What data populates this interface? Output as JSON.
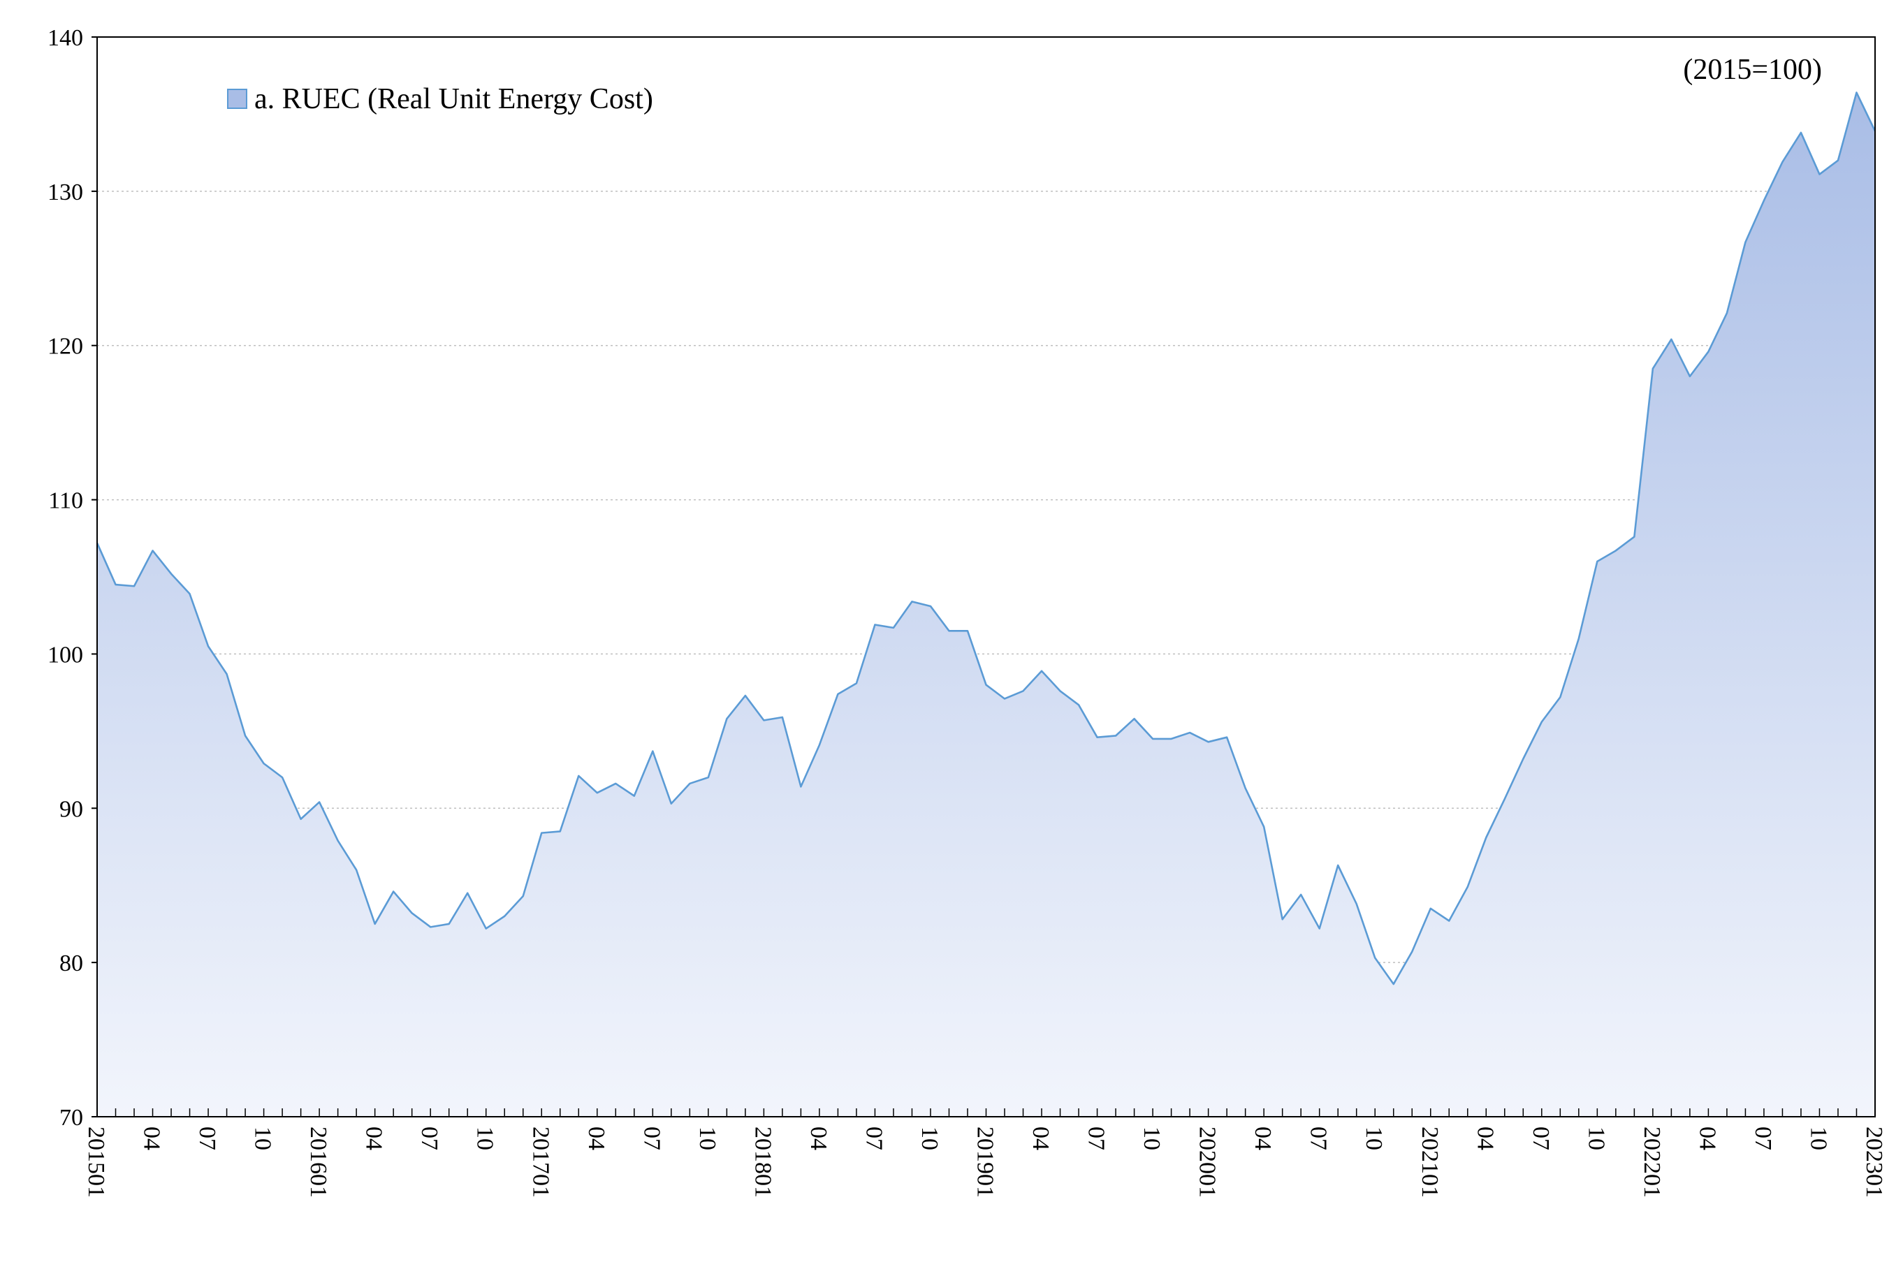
{
  "chart_data": {
    "type": "area",
    "note": "(2015=100)",
    "legend": {
      "entries": [
        "a. RUEC (Real Unit Energy Cost)"
      ],
      "placement": "top-left"
    },
    "colors": {
      "line": "#5b9bd5",
      "fill_top": "#a9bde6",
      "fill_bottom": "#f2f5fc",
      "grid": "#bfbfbf",
      "axis": "#000000"
    },
    "ylim": [
      70,
      140
    ],
    "yticks": [
      70,
      80,
      90,
      100,
      110,
      120,
      130,
      140
    ],
    "grid": true,
    "x_tick_labels": [
      {
        "index": 0,
        "label": "201501"
      },
      {
        "index": 3,
        "label": "04"
      },
      {
        "index": 6,
        "label": "07"
      },
      {
        "index": 9,
        "label": "10"
      },
      {
        "index": 12,
        "label": "201601"
      },
      {
        "index": 15,
        "label": "04"
      },
      {
        "index": 18,
        "label": "07"
      },
      {
        "index": 21,
        "label": "10"
      },
      {
        "index": 24,
        "label": "201701"
      },
      {
        "index": 27,
        "label": "04"
      },
      {
        "index": 30,
        "label": "07"
      },
      {
        "index": 33,
        "label": "10"
      },
      {
        "index": 36,
        "label": "201801"
      },
      {
        "index": 39,
        "label": "04"
      },
      {
        "index": 42,
        "label": "07"
      },
      {
        "index": 45,
        "label": "10"
      },
      {
        "index": 48,
        "label": "201901"
      },
      {
        "index": 51,
        "label": "04"
      },
      {
        "index": 54,
        "label": "07"
      },
      {
        "index": 57,
        "label": "10"
      },
      {
        "index": 60,
        "label": "202001"
      },
      {
        "index": 63,
        "label": "04"
      },
      {
        "index": 66,
        "label": "07"
      },
      {
        "index": 69,
        "label": "10"
      },
      {
        "index": 72,
        "label": "202101"
      },
      {
        "index": 75,
        "label": "04"
      },
      {
        "index": 78,
        "label": "07"
      },
      {
        "index": 81,
        "label": "10"
      },
      {
        "index": 84,
        "label": "202201"
      },
      {
        "index": 87,
        "label": "04"
      },
      {
        "index": 90,
        "label": "07"
      },
      {
        "index": 93,
        "label": "10"
      },
      {
        "index": 96,
        "label": "202301"
      }
    ],
    "series": [
      {
        "name": "a. RUEC (Real Unit Energy Cost)",
        "x": [
          "201501",
          "201502",
          "201503",
          "201504",
          "201505",
          "201506",
          "201507",
          "201508",
          "201509",
          "201510",
          "201511",
          "201512",
          "201601",
          "201602",
          "201603",
          "201604",
          "201605",
          "201606",
          "201607",
          "201608",
          "201609",
          "201610",
          "201611",
          "201612",
          "201701",
          "201702",
          "201703",
          "201704",
          "201705",
          "201706",
          "201707",
          "201708",
          "201709",
          "201710",
          "201711",
          "201712",
          "201801",
          "201802",
          "201803",
          "201804",
          "201805",
          "201806",
          "201807",
          "201808",
          "201809",
          "201810",
          "201811",
          "201812",
          "201901",
          "201902",
          "201903",
          "201904",
          "201905",
          "201906",
          "201907",
          "201908",
          "201909",
          "201910",
          "201911",
          "201912",
          "202001",
          "202002",
          "202003",
          "202004",
          "202005",
          "202006",
          "202007",
          "202008",
          "202009",
          "202010",
          "202011",
          "202012",
          "202101",
          "202102",
          "202103",
          "202104",
          "202105",
          "202106",
          "202107",
          "202108",
          "202109",
          "202110",
          "202111",
          "202112",
          "202201",
          "202202",
          "202203",
          "202204",
          "202205",
          "202206",
          "202207",
          "202208",
          "202209",
          "202210",
          "202211",
          "202212",
          "202301"
        ],
        "values": [
          107.2,
          104.5,
          104.4,
          106.7,
          105.2,
          103.9,
          100.5,
          98.7,
          94.7,
          92.9,
          92.0,
          89.3,
          90.4,
          87.9,
          86.0,
          82.5,
          84.6,
          83.2,
          82.3,
          82.5,
          84.5,
          82.2,
          83.0,
          84.3,
          88.4,
          88.5,
          92.1,
          91.0,
          91.6,
          90.8,
          93.7,
          90.3,
          91.6,
          92.0,
          95.8,
          97.3,
          95.7,
          95.9,
          91.4,
          94.1,
          97.4,
          98.1,
          101.9,
          101.7,
          103.4,
          103.1,
          101.5,
          101.5,
          98.0,
          97.1,
          97.6,
          98.9,
          97.6,
          96.7,
          94.6,
          94.7,
          95.8,
          94.5,
          94.5,
          94.9,
          94.3,
          94.6,
          91.3,
          88.8,
          82.8,
          84.4,
          82.2,
          86.3,
          83.8,
          80.3,
          78.6,
          80.7,
          83.5,
          82.7,
          84.9,
          88.1,
          90.6,
          93.2,
          95.6,
          97.2,
          101.0,
          106.0,
          106.7,
          107.6,
          118.5,
          120.4,
          118.0,
          119.6,
          122.1,
          126.7,
          129.4,
          131.9,
          133.8,
          131.1,
          132.0,
          136.4,
          133.9
        ]
      }
    ]
  }
}
